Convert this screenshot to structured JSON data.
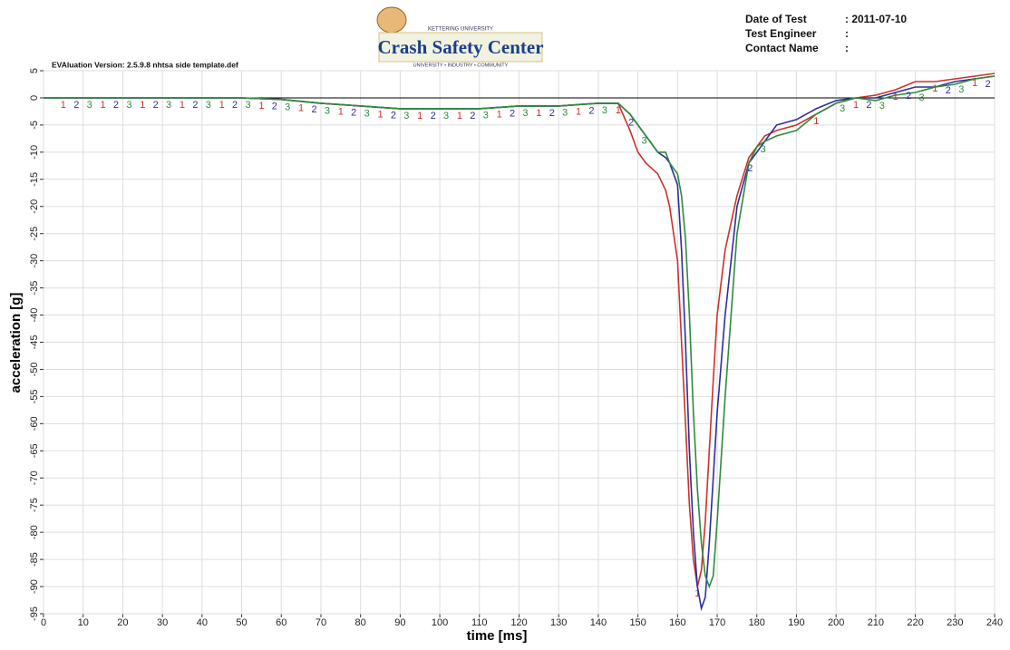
{
  "header": {
    "logo_top": "KETTERING UNIVERSITY",
    "logo_title": "Crash Safety Center",
    "logo_bottom": "UNIVERSITY • INDUSTRY • COMMUNITY",
    "info": [
      {
        "label": "Date of Test",
        "value": ": 2011-07-10"
      },
      {
        "label": "Test Engineer",
        "value": ":"
      },
      {
        "label": "Contact Name",
        "value": ":"
      }
    ],
    "version": "EVAluation Version: 2.5.9.8 nhtsa side template.def"
  },
  "chart_data": {
    "type": "line",
    "xlabel": "time [ms]",
    "ylabel": "acceleration [g]",
    "xlim": [
      0,
      240
    ],
    "ylim": [
      -95,
      5
    ],
    "xticks": [
      0,
      10,
      20,
      30,
      40,
      50,
      60,
      70,
      80,
      90,
      100,
      110,
      120,
      130,
      140,
      150,
      160,
      170,
      180,
      190,
      200,
      210,
      220,
      230,
      240
    ],
    "yticks": [
      5,
      0,
      -5,
      -10,
      -15,
      -20,
      -25,
      -30,
      -35,
      -40,
      -45,
      -50,
      -55,
      -60,
      -65,
      -70,
      -75,
      -80,
      -85,
      -90,
      -95
    ],
    "grid": true,
    "x": [
      0,
      10,
      20,
      30,
      40,
      50,
      60,
      70,
      80,
      90,
      100,
      110,
      120,
      130,
      140,
      145,
      148,
      150,
      152,
      155,
      157,
      158,
      160,
      161,
      162,
      163,
      164,
      165,
      166,
      167,
      168,
      169,
      170,
      172,
      175,
      178,
      180,
      182,
      185,
      190,
      195,
      200,
      205,
      210,
      215,
      220,
      225,
      230,
      235,
      240
    ],
    "series": [
      {
        "name": "1",
        "color": "#d0302a",
        "values": [
          0,
          0,
          0,
          0,
          0,
          0,
          -0.3,
          -1,
          -1.5,
          -2,
          -2,
          -2,
          -1.5,
          -1.5,
          -1,
          -1,
          -6,
          -10,
          -12,
          -14,
          -17,
          -20,
          -30,
          -45,
          -60,
          -75,
          -85,
          -90,
          -87,
          -78,
          -65,
          -52,
          -40,
          -28,
          -18,
          -11,
          -9,
          -7,
          -6,
          -5,
          -3,
          -1,
          0,
          0.5,
          1.5,
          3,
          3,
          3.5,
          4,
          4.5
        ]
      },
      {
        "name": "2",
        "color": "#2b2f9a",
        "values": [
          0,
          0,
          0,
          0,
          0,
          0,
          -0.3,
          -1,
          -1.5,
          -2,
          -2,
          -2,
          -1.5,
          -1.5,
          -1,
          -1,
          -3,
          -5,
          -7,
          -10,
          -11,
          -12,
          -16,
          -28,
          -45,
          -65,
          -80,
          -90,
          -94,
          -92,
          -82,
          -70,
          -58,
          -40,
          -20,
          -12,
          -10,
          -8,
          -5,
          -4,
          -2,
          -0.5,
          0,
          0,
          1,
          2,
          2,
          3,
          3.5,
          4
        ]
      },
      {
        "name": "3",
        "color": "#2e8b3a",
        "values": [
          0,
          0,
          0,
          0,
          0,
          0,
          -0.3,
          -1,
          -1.5,
          -2,
          -2,
          -2,
          -1.5,
          -1.5,
          -1,
          -1,
          -3,
          -5,
          -7,
          -10,
          -10,
          -12,
          -14,
          -18,
          -26,
          -40,
          -58,
          -72,
          -82,
          -88,
          -90,
          -88,
          -78,
          -55,
          -25,
          -12,
          -9,
          -8,
          -7,
          -6,
          -3,
          -1,
          0,
          -0.5,
          0.5,
          1,
          2,
          2.5,
          3.5,
          4
        ]
      }
    ]
  }
}
